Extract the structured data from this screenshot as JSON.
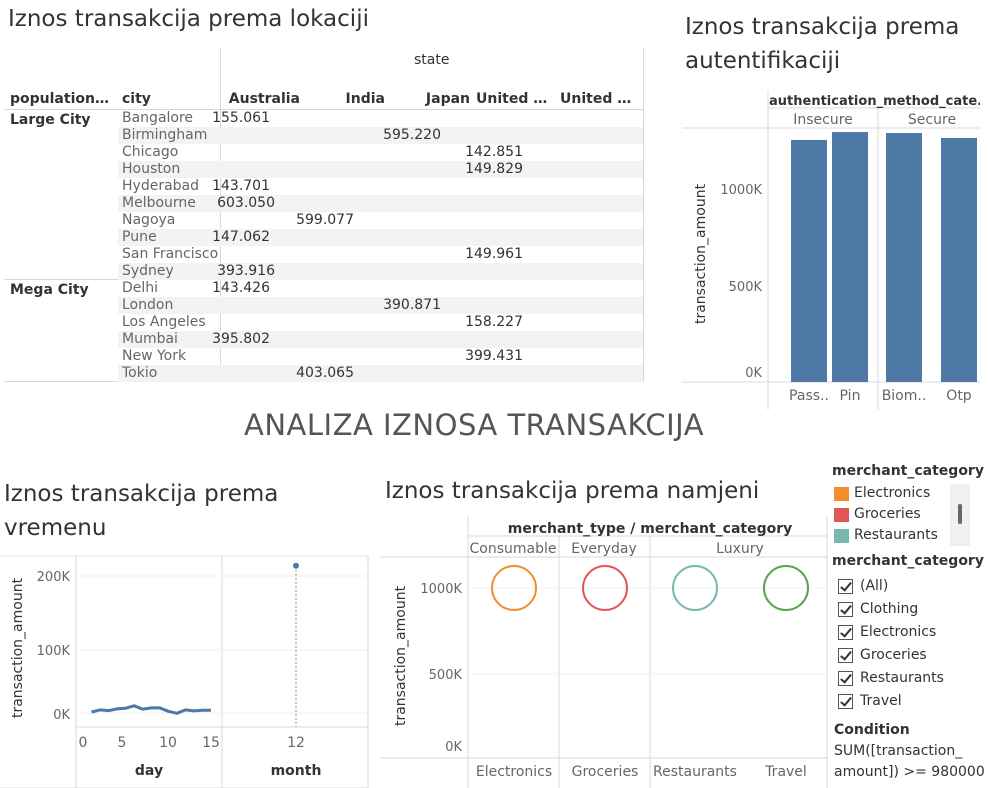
{
  "main_title": "ANALIZA IZNOSA TRANSAKCIJA",
  "location": {
    "title": "Iznos transakcija prema lokaciji",
    "col_group_header": "state",
    "row_header_1": "population_c..",
    "row_header_2": "city",
    "columns": [
      "Australia",
      "India",
      "Japan",
      "United Ki..",
      "United St.."
    ],
    "groups": [
      {
        "name": "Large City",
        "rows": [
          {
            "city": "Bangalore",
            "values": [
              "",
              "155.061",
              "",
              "",
              ""
            ]
          },
          {
            "city": "Birmingham",
            "values": [
              "",
              "",
              "",
              "595.220",
              ""
            ]
          },
          {
            "city": "Chicago",
            "values": [
              "",
              "",
              "",
              "",
              "142.851"
            ]
          },
          {
            "city": "Houston",
            "values": [
              "",
              "",
              "",
              "",
              "149.829"
            ]
          },
          {
            "city": "Hyderabad",
            "values": [
              "",
              "143.701",
              "",
              "",
              ""
            ]
          },
          {
            "city": "Melbourne",
            "values": [
              "603.050",
              "",
              "",
              "",
              ""
            ]
          },
          {
            "city": "Nagoya",
            "values": [
              "",
              "",
              "599.077",
              "",
              ""
            ]
          },
          {
            "city": "Pune",
            "values": [
              "",
              "147.062",
              "",
              "",
              ""
            ]
          },
          {
            "city": "San Francisco",
            "values": [
              "",
              "",
              "",
              "",
              "149.961"
            ]
          },
          {
            "city": "Sydney",
            "values": [
              "393.916",
              "",
              "",
              "",
              ""
            ]
          }
        ]
      },
      {
        "name": "Mega City",
        "rows": [
          {
            "city": "Delhi",
            "values": [
              "",
              "143.426",
              "",
              "",
              ""
            ]
          },
          {
            "city": "London",
            "values": [
              "",
              "",
              "",
              "390.871",
              ""
            ]
          },
          {
            "city": "Los Angeles",
            "values": [
              "",
              "",
              "",
              "",
              "158.227"
            ]
          },
          {
            "city": "Mumbai",
            "values": [
              "",
              "395.802",
              "",
              "",
              ""
            ]
          },
          {
            "city": "New York",
            "values": [
              "",
              "",
              "",
              "",
              "399.431"
            ]
          },
          {
            "city": "Tokio",
            "values": [
              "",
              "",
              "403.065",
              "",
              ""
            ]
          }
        ]
      }
    ]
  },
  "auth": {
    "title_line1": "Iznos transakcija prema",
    "title_line2": "autentifikaciji",
    "header": "authentication_method_cate..",
    "groups": [
      "Insecure",
      "Secure"
    ],
    "ylabel": "transaction_amount",
    "ticks": [
      "1000K",
      "500K",
      "0K"
    ]
  },
  "time": {
    "title_line1": "Iznos transakcija prema",
    "title_line2": "vremenu",
    "ylabel": "transaction_amount",
    "ticks": [
      "200K",
      "100K",
      "0K"
    ],
    "day_ticks": [
      "0",
      "5",
      "10",
      "15"
    ],
    "month_ticks": [
      "12"
    ],
    "xlabel_day": "day",
    "xlabel_month": "month"
  },
  "purpose": {
    "title": "Iznos transakcija prema namjeni",
    "header": "merchant_type  /  merchant_category",
    "types": [
      "Consumable",
      "Everyday",
      "Luxury"
    ],
    "ylabel": "transaction_amount",
    "ticks": [
      "1000K",
      "500K",
      "0K"
    ]
  },
  "legend": {
    "title": "merchant_category",
    "items": [
      {
        "label": "Electronics",
        "color": "#f28e2b"
      },
      {
        "label": "Groceries",
        "color": "#e15759"
      },
      {
        "label": "Restaurants",
        "color": "#76b7b2"
      }
    ]
  },
  "filter": {
    "title": "merchant_category",
    "items": [
      "(All)",
      "Clothing",
      "Electronics",
      "Groceries",
      "Restaurants",
      "Travel"
    ],
    "condition_title": "Condition",
    "condition_line1": "SUM([transaction_",
    "condition_line2": "amount]) >= 980000"
  },
  "chart_data": [
    {
      "type": "bar",
      "title": "Iznos transakcija prema autentifikaciji",
      "categories": [
        "Pass..",
        "Pin",
        "Biom..",
        "Otp"
      ],
      "groups": [
        "Insecure",
        "Insecure",
        "Secure",
        "Secure"
      ],
      "values": [
        1220000,
        1260000,
        1255000,
        1230000
      ],
      "ylabel": "transaction_amount",
      "ylim": [
        0,
        1250000
      ],
      "color": "#4e79a7"
    },
    {
      "type": "line",
      "title": "Iznos transakcija prema vremenu",
      "xlabel": "day",
      "ylabel": "transaction_amount",
      "x": [
        1,
        2,
        3,
        4,
        5,
        6,
        7,
        8,
        9,
        10,
        11,
        12,
        13,
        14,
        15
      ],
      "values": [
        1500,
        4500,
        3500,
        6000,
        7000,
        10500,
        5500,
        7500,
        7500,
        2500,
        -500,
        4500,
        3000,
        4000,
        4000
      ],
      "ylim": [
        -20000,
        230000
      ],
      "color": "#4e79a7"
    },
    {
      "type": "scatter",
      "title": "Iznos transakcija prema vremenu (month)",
      "xlabel": "month",
      "x": [
        12
      ],
      "values": [
        215000
      ],
      "color": "#4e79a7"
    },
    {
      "type": "scatter",
      "title": "Iznos transakcija prema namjeni",
      "categories": [
        "Electronics",
        "Groceries",
        "Restaurants",
        "Travel"
      ],
      "merchant_type": [
        "Consumable",
        "Everyday",
        "Luxury",
        "Luxury"
      ],
      "values": [
        1000000,
        1000000,
        1000000,
        1000000
      ],
      "colors": [
        "#f28e2b",
        "#e15759",
        "#76b7b2",
        "#59a14f"
      ],
      "ylim": [
        -80000,
        1200000
      ]
    }
  ]
}
